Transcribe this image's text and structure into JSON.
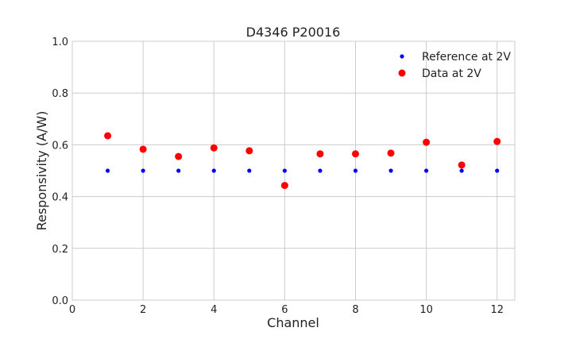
{
  "chart_data": {
    "type": "scatter",
    "title": "D4346 P20016",
    "xlabel": "Channel",
    "ylabel": "Responsivity (A/W)",
    "xlim": [
      0,
      12.5
    ],
    "ylim": [
      0.0,
      1.0
    ],
    "xticks": [
      0,
      2,
      4,
      6,
      8,
      10,
      12
    ],
    "yticks": [
      0.0,
      0.2,
      0.4,
      0.6,
      0.8,
      1.0
    ],
    "xtick_labels": [
      "0",
      "2",
      "4",
      "6",
      "8",
      "10",
      "12"
    ],
    "ytick_labels": [
      "0.0",
      "0.2",
      "0.4",
      "0.6",
      "0.8",
      "1.0"
    ],
    "grid": true,
    "legend_position": "top-right",
    "series": [
      {
        "name": "Reference at 2V",
        "color": "#0000ff",
        "marker": "small-dot",
        "x": [
          1,
          2,
          3,
          4,
          5,
          6,
          7,
          8,
          9,
          10,
          11,
          12
        ],
        "y": [
          0.5,
          0.5,
          0.5,
          0.5,
          0.5,
          0.5,
          0.5,
          0.5,
          0.5,
          0.5,
          0.5,
          0.5
        ]
      },
      {
        "name": "Data at 2V",
        "color": "#ff0000",
        "marker": "large-dot",
        "x": [
          1,
          2,
          3,
          4,
          5,
          6,
          7,
          8,
          9,
          10,
          11,
          12
        ],
        "y": [
          0.635,
          0.583,
          0.555,
          0.588,
          0.577,
          0.443,
          0.565,
          0.565,
          0.568,
          0.61,
          0.522,
          0.613
        ]
      }
    ]
  }
}
